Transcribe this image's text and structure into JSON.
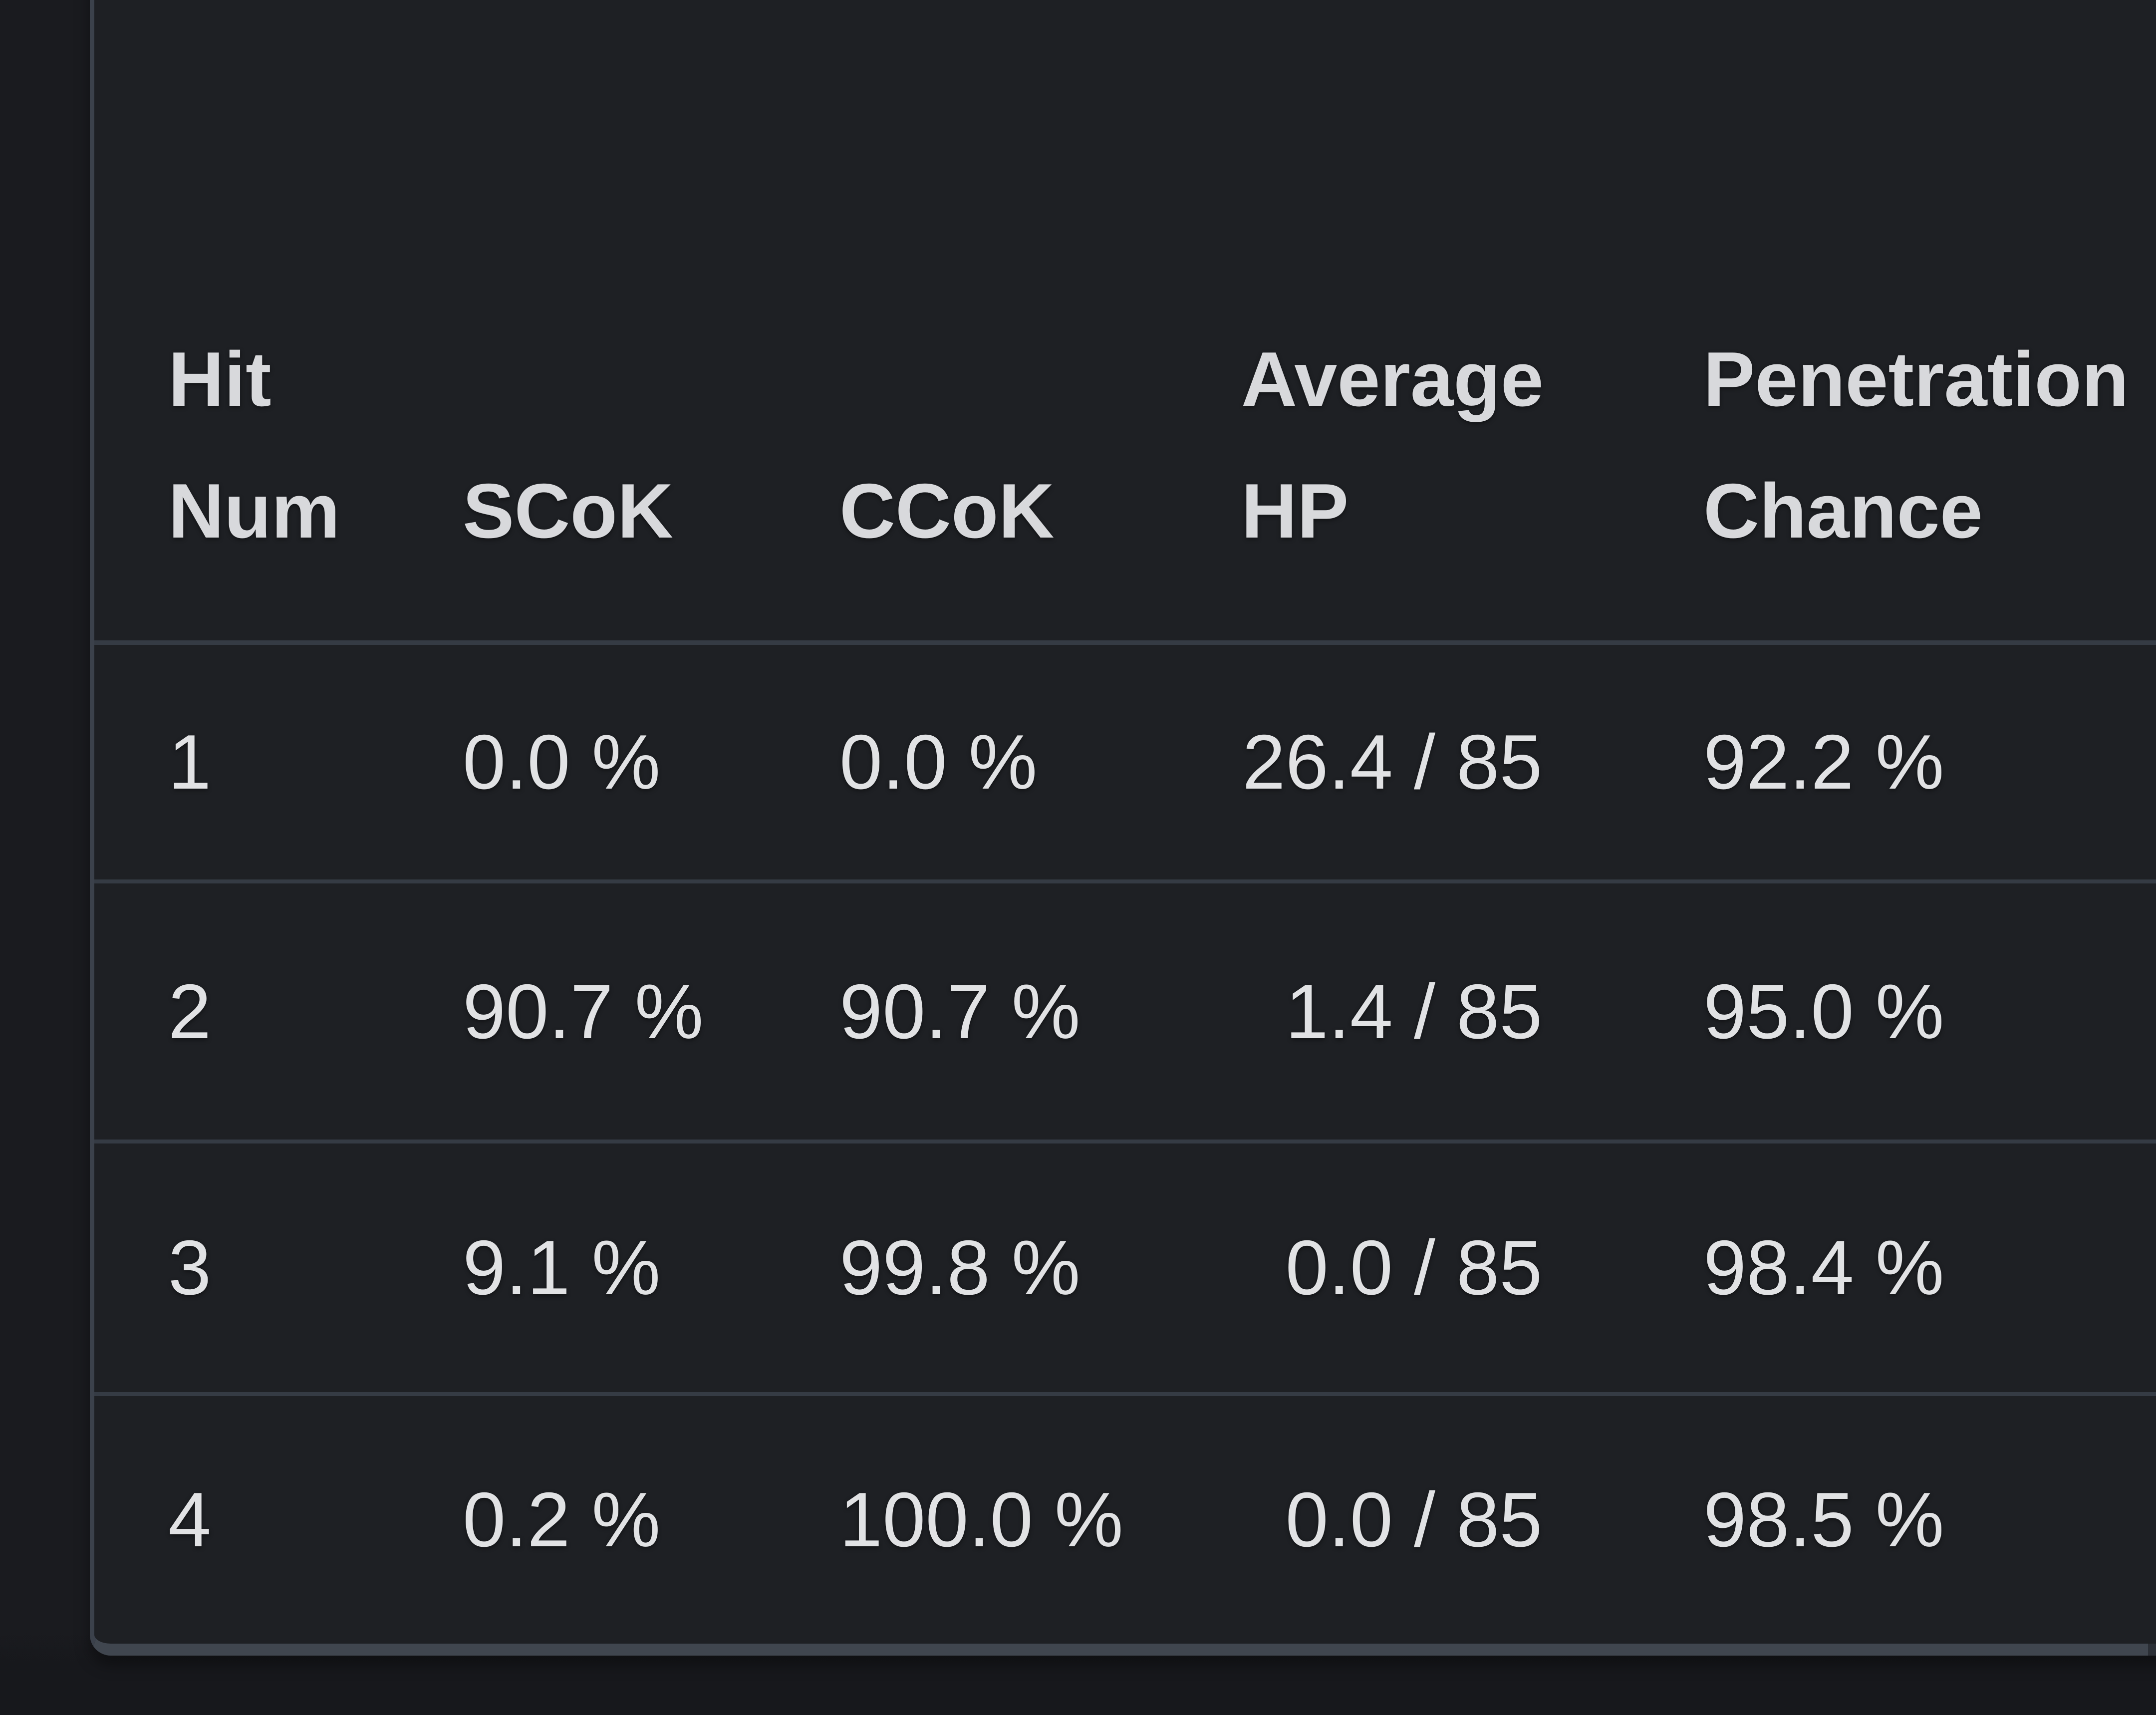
{
  "theme": {
    "page_bg": "#1a1b1f",
    "page_bg_bottom": "#17181c",
    "card_bg": "#1e2024",
    "card_border": "#3b414b",
    "row_divider": "#353b44",
    "scrollbar": "#40464f",
    "scrollbar_cap": "#2b2f36",
    "header_text": "#d8d9dc",
    "body_text": "#e1e2e4"
  },
  "table": {
    "columns": [
      {
        "id": "hit_num",
        "line1": "Hit",
        "line2": "Num"
      },
      {
        "id": "scok",
        "line1": "",
        "line2": "SCoK"
      },
      {
        "id": "ccok",
        "line1": "",
        "line2": "CCoK"
      },
      {
        "id": "average_hp",
        "line1": "Average",
        "line2": "HP"
      },
      {
        "id": "penetration_chance",
        "line1": "Penetration",
        "line2": "Chance"
      }
    ],
    "hp_separator": "/",
    "rows": [
      {
        "hit_num": "1",
        "scok": "0.0 %",
        "ccok": "0.0 %",
        "avg_hp_current": "26.4",
        "avg_hp_max": "85",
        "penetration_chance": "92.2 %"
      },
      {
        "hit_num": "2",
        "scok": "90.7 %",
        "ccok": "90.7 %",
        "avg_hp_current": "1.4",
        "avg_hp_max": "85",
        "penetration_chance": "95.0 %"
      },
      {
        "hit_num": "3",
        "scok": "9.1 %",
        "ccok": "99.8 %",
        "avg_hp_current": "0.0",
        "avg_hp_max": "85",
        "penetration_chance": "98.4 %"
      },
      {
        "hit_num": "4",
        "scok": "0.2 %",
        "ccok": "100.0 %",
        "avg_hp_current": "0.0",
        "avg_hp_max": "85",
        "penetration_chance": "98.5 %"
      }
    ]
  }
}
